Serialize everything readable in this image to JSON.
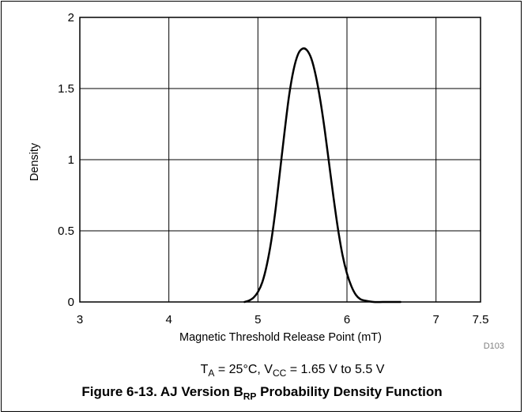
{
  "chart_data": {
    "type": "line",
    "title": "",
    "xlabel": "Magnetic Threshold Release Point (mT)",
    "ylabel": "Density",
    "xlim": [
      3,
      7.5
    ],
    "ylim": [
      0,
      2
    ],
    "x_ticks": [
      3,
      4,
      5,
      6,
      7,
      7.5
    ],
    "x_tick_labels": [
      "3",
      "4",
      "5",
      "6",
      "7",
      "7.5"
    ],
    "y_ticks": [
      0,
      0.5,
      1,
      1.5,
      2
    ],
    "y_tick_labels": [
      "0",
      "0.5",
      "1",
      "1.5",
      "2"
    ],
    "grid": true,
    "series": [
      {
        "x": [
          4.85,
          4.9,
          4.95,
          5.0,
          5.05,
          5.1,
          5.15,
          5.2,
          5.25,
          5.3,
          5.35,
          5.4,
          5.45,
          5.5,
          5.55,
          5.6,
          5.65,
          5.7,
          5.75,
          5.8,
          5.85,
          5.9,
          5.95,
          6.0,
          6.05,
          6.1,
          6.15,
          6.2,
          6.3,
          6.4,
          6.5,
          6.6
        ],
        "y": [
          0.0,
          0.01,
          0.03,
          0.07,
          0.14,
          0.26,
          0.43,
          0.66,
          0.93,
          1.2,
          1.45,
          1.63,
          1.74,
          1.78,
          1.77,
          1.71,
          1.59,
          1.42,
          1.21,
          0.97,
          0.73,
          0.51,
          0.33,
          0.2,
          0.11,
          0.05,
          0.02,
          0.01,
          0.0,
          0.0,
          0.0,
          0.0
        ]
      }
    ],
    "code": "D103",
    "conditions": "T_A = 25°C, V_CC = 1.65 V to 5.5 V"
  },
  "caption": {
    "prefix": "Figure 6-13. AJ Version B",
    "subscript": "RP",
    "suffix": " Probability Density Function"
  },
  "conditions": {
    "ta_main": "T",
    "ta_sub": "A",
    "ta_rest": " = 25°C, V",
    "vcc_sub": "CC",
    "vcc_rest": " = 1.65 V to 5.5 V"
  },
  "colors": {
    "curve": "#000000",
    "grid": "#000000",
    "code_text": "#808080"
  }
}
